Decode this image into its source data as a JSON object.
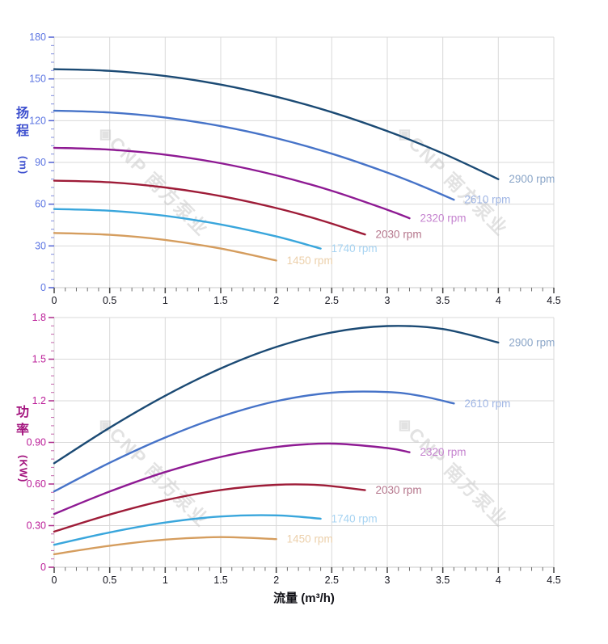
{
  "watermark": {
    "logo": "◈",
    "text": "CNP 南方泵业",
    "color": "#c6c6c6"
  },
  "x_axis_title": "流量 (m³/h)",
  "chart_data": [
    {
      "type": "line",
      "name": "head-vs-flow",
      "title": "",
      "xlabel": "流量 (m³/h)",
      "ylabel": "扬程 (m)",
      "ylabel_char1": "扬",
      "ylabel_char2": "程",
      "ylabel_unit": "(m)",
      "xlim": [
        0,
        4.5
      ],
      "ylim": [
        0,
        180
      ],
      "x_major": 0.5,
      "x_minor": 0.1,
      "y_major": 30,
      "y_minor": 6,
      "grid": true,
      "legend_position": "at-line-end",
      "axis_color": "#3f51cf",
      "tick_text_color": "#5b74e2",
      "x_tick_labels": [
        "0",
        "0.5",
        "1",
        "1.5",
        "2",
        "2.5",
        "3",
        "3.5",
        "4",
        "4.5"
      ],
      "y_tick_labels": [
        "0",
        "30",
        "60",
        "90",
        "120",
        "150",
        "180"
      ],
      "series": [
        {
          "name": "2900 rpm",
          "color": "#1b4a74",
          "label_color": "#8ba6c8",
          "points": [
            [
              0,
              157
            ],
            [
              0.5,
              155.8
            ],
            [
              1,
              152.1
            ],
            [
              1.5,
              145.9
            ],
            [
              2,
              137.2
            ],
            [
              2.5,
              126.1
            ],
            [
              3,
              112.5
            ],
            [
              3.5,
              96.5
            ],
            [
              4,
              78
            ]
          ]
        },
        {
          "name": "2610 rpm",
          "color": "#4673c8",
          "label_color": "#9fb5e4",
          "points": [
            [
              0,
              127.2
            ],
            [
              0.5,
              125.9
            ],
            [
              1,
              122.3
            ],
            [
              1.5,
              116.1
            ],
            [
              2,
              107.4
            ],
            [
              2.5,
              96.3
            ],
            [
              3,
              82.7
            ],
            [
              3.3,
              73.4
            ],
            [
              3.6,
              63.2
            ]
          ]
        },
        {
          "name": "2320 rpm",
          "color": "#8e1a93",
          "label_color": "#c583cf",
          "points": [
            [
              0,
              100.5
            ],
            [
              0.5,
              99.2
            ],
            [
              1,
              95.6
            ],
            [
              1.5,
              89.4
            ],
            [
              2,
              80.7
            ],
            [
              2.5,
              69.6
            ],
            [
              3,
              56
            ],
            [
              3.2,
              49.9
            ]
          ]
        },
        {
          "name": "2030 rpm",
          "color": "#9e1c38",
          "label_color": "#b5768c",
          "points": [
            [
              0,
              76.9
            ],
            [
              0.5,
              75.7
            ],
            [
              1,
              72
            ],
            [
              1.5,
              65.8
            ],
            [
              2,
              57.2
            ],
            [
              2.4,
              48.5
            ],
            [
              2.8,
              38.2
            ]
          ]
        },
        {
          "name": "1740 rpm",
          "color": "#39a6dc",
          "label_color": "#a6d3f2",
          "points": [
            [
              0,
              56.5
            ],
            [
              0.5,
              55.3
            ],
            [
              1,
              51.6
            ],
            [
              1.5,
              45.4
            ],
            [
              2,
              36.8
            ],
            [
              2.4,
              28.1
            ]
          ]
        },
        {
          "name": "1450 rpm",
          "color": "#d59d5e",
          "label_color": "#ecd0ab",
          "points": [
            [
              0,
              39.3
            ],
            [
              0.5,
              38
            ],
            [
              1,
              34.3
            ],
            [
              1.5,
              28.1
            ],
            [
              2,
              19.5
            ]
          ]
        }
      ]
    },
    {
      "type": "line",
      "name": "power-vs-flow",
      "title": "",
      "xlabel": "流量 (m³/h)",
      "ylabel": "功率 (KW)",
      "ylabel_char1": "功",
      "ylabel_char2": "率",
      "ylabel_unit": "(KW)",
      "xlim": [
        0,
        4.5
      ],
      "ylim": [
        0,
        1.8
      ],
      "x_major": 0.5,
      "x_minor": 0.1,
      "y_major": 0.3,
      "y_minor": 0.06,
      "grid": true,
      "legend_position": "at-line-end",
      "axis_color": "#a4157f",
      "tick_text_color": "#bb1d98",
      "x_tick_labels": [
        "0",
        "0.5",
        "1",
        "1.5",
        "2",
        "2.5",
        "3",
        "3.5",
        "4",
        "4.5"
      ],
      "y_tick_labels": [
        "0",
        "0.30",
        "0.60",
        "0.90",
        "1.2",
        "1.5",
        "1.8"
      ],
      "series": [
        {
          "name": "2900 rpm",
          "color": "#1b4a74",
          "label_color": "#8ba6c8",
          "points": [
            [
              0,
              0.75
            ],
            [
              0.5,
              1.006
            ],
            [
              1,
              1.236
            ],
            [
              1.5,
              1.433
            ],
            [
              2,
              1.588
            ],
            [
              2.5,
              1.693
            ],
            [
              3,
              1.739
            ],
            [
              3.5,
              1.717
            ],
            [
              4,
              1.62
            ]
          ]
        },
        {
          "name": "2610 rpm",
          "color": "#4673c8",
          "label_color": "#9fb5e4",
          "points": [
            [
              0,
              0.547
            ],
            [
              0.5,
              0.753
            ],
            [
              1,
              0.935
            ],
            [
              1.5,
              1.086
            ],
            [
              2,
              1.197
            ],
            [
              2.5,
              1.258
            ],
            [
              3,
              1.263
            ],
            [
              3.3,
              1.235
            ],
            [
              3.6,
              1.181
            ]
          ]
        },
        {
          "name": "2320 rpm",
          "color": "#8e1a93",
          "label_color": "#c583cf",
          "points": [
            [
              0,
              0.384
            ],
            [
              0.5,
              0.546
            ],
            [
              1,
              0.686
            ],
            [
              1.5,
              0.795
            ],
            [
              2,
              0.867
            ],
            [
              2.5,
              0.891
            ],
            [
              3,
              0.859
            ],
            [
              3.2,
              0.829
            ]
          ]
        },
        {
          "name": "2030 rpm",
          "color": "#9e1c38",
          "label_color": "#b5768c",
          "points": [
            [
              0,
              0.257
            ],
            [
              0.5,
              0.38
            ],
            [
              1,
              0.483
            ],
            [
              1.5,
              0.557
            ],
            [
              2,
              0.594
            ],
            [
              2.4,
              0.592
            ],
            [
              2.8,
              0.556
            ]
          ]
        },
        {
          "name": "1740 rpm",
          "color": "#39a6dc",
          "label_color": "#a6d3f2",
          "points": [
            [
              0,
              0.162
            ],
            [
              0.5,
              0.251
            ],
            [
              1,
              0.322
            ],
            [
              1.5,
              0.366
            ],
            [
              2,
              0.374
            ],
            [
              2.4,
              0.35
            ]
          ]
        },
        {
          "name": "1450 rpm",
          "color": "#d59d5e",
          "label_color": "#ecd0ab",
          "points": [
            [
              0,
              0.094
            ],
            [
              0.5,
              0.155
            ],
            [
              1,
              0.199
            ],
            [
              1.5,
              0.217
            ],
            [
              2,
              0.203
            ]
          ]
        }
      ]
    }
  ]
}
